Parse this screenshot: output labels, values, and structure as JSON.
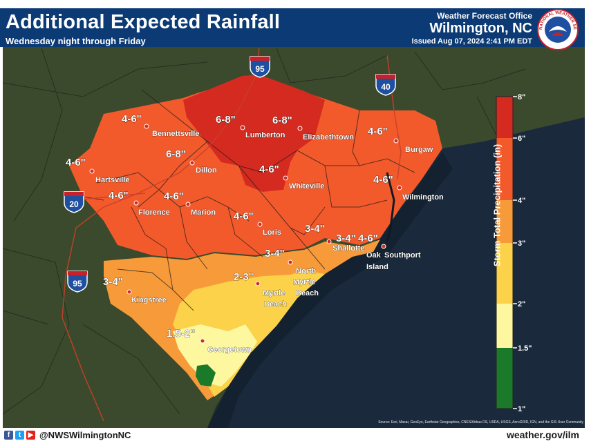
{
  "header": {
    "title": "Additional Expected Rainfall",
    "subtitle": "Wednesday night through Friday",
    "office_label": "Weather Forecast Office",
    "office_city": "Wilmington, NC",
    "issued": "Issued Aug 07, 2024 2:41 PM EDT",
    "logo_text": "NATIONAL WEATHER SERVICE"
  },
  "colors": {
    "header": "#0b3a74",
    "c_6_8": "#d42a20",
    "c_4_6": "#f25a2c",
    "c_3_4": "#f79a3a",
    "c_2_3": "#fbd24a",
    "c_1_5_2": "#fdf7a0",
    "c_1_1_5": "#1a7a2a",
    "ocean": "#1a2a3c",
    "land": "#3b4a2c"
  },
  "legend": {
    "title": "Storm Total Precipitation (in)",
    "ticks": [
      "8\"",
      "6\"",
      "4\"",
      "3\"",
      "2\"",
      "1.5\"",
      "1\""
    ]
  },
  "rainfall_labels": [
    "4-6\"",
    "6-8\"",
    "6-8\"",
    "4-6\"",
    "4-6\"",
    "6-8\"",
    "4-6\"",
    "4-6\"",
    "4-6\"",
    "4-6\"",
    "4-6\"",
    "3-4\"",
    "3-4\"",
    "4-6\"",
    "3-4\"",
    "2-3\"",
    "3-4\"",
    "1.5-2\""
  ],
  "cities": [
    "Bennettsville",
    "Lumberton",
    "Elizabethtown",
    "Burgaw",
    "Dillon",
    "Hartsville",
    "Whiteville",
    "Wilmington",
    "Florence",
    "Marion",
    "Loris",
    "Shallotte",
    "Oak",
    "Southport",
    "Island",
    "North",
    "Myrtle",
    "Beach",
    "Myrtle",
    "Beach",
    "Kingstree",
    "Georgetown"
  ],
  "highways": [
    "95",
    "40",
    "20",
    "95"
  ],
  "footer": {
    "handle": "@NWSWilmingtonNC",
    "website": "weather.gov/ilm",
    "source": "Source: Esri, Maxar, GeoEye, Earthstar Geographics, CNES/Airbus DS, USDA, USGS, AeroGRID, IGN, and the GIS User Community",
    "social_icons": [
      "facebook-icon",
      "twitter-icon",
      "youtube-icon"
    ]
  }
}
